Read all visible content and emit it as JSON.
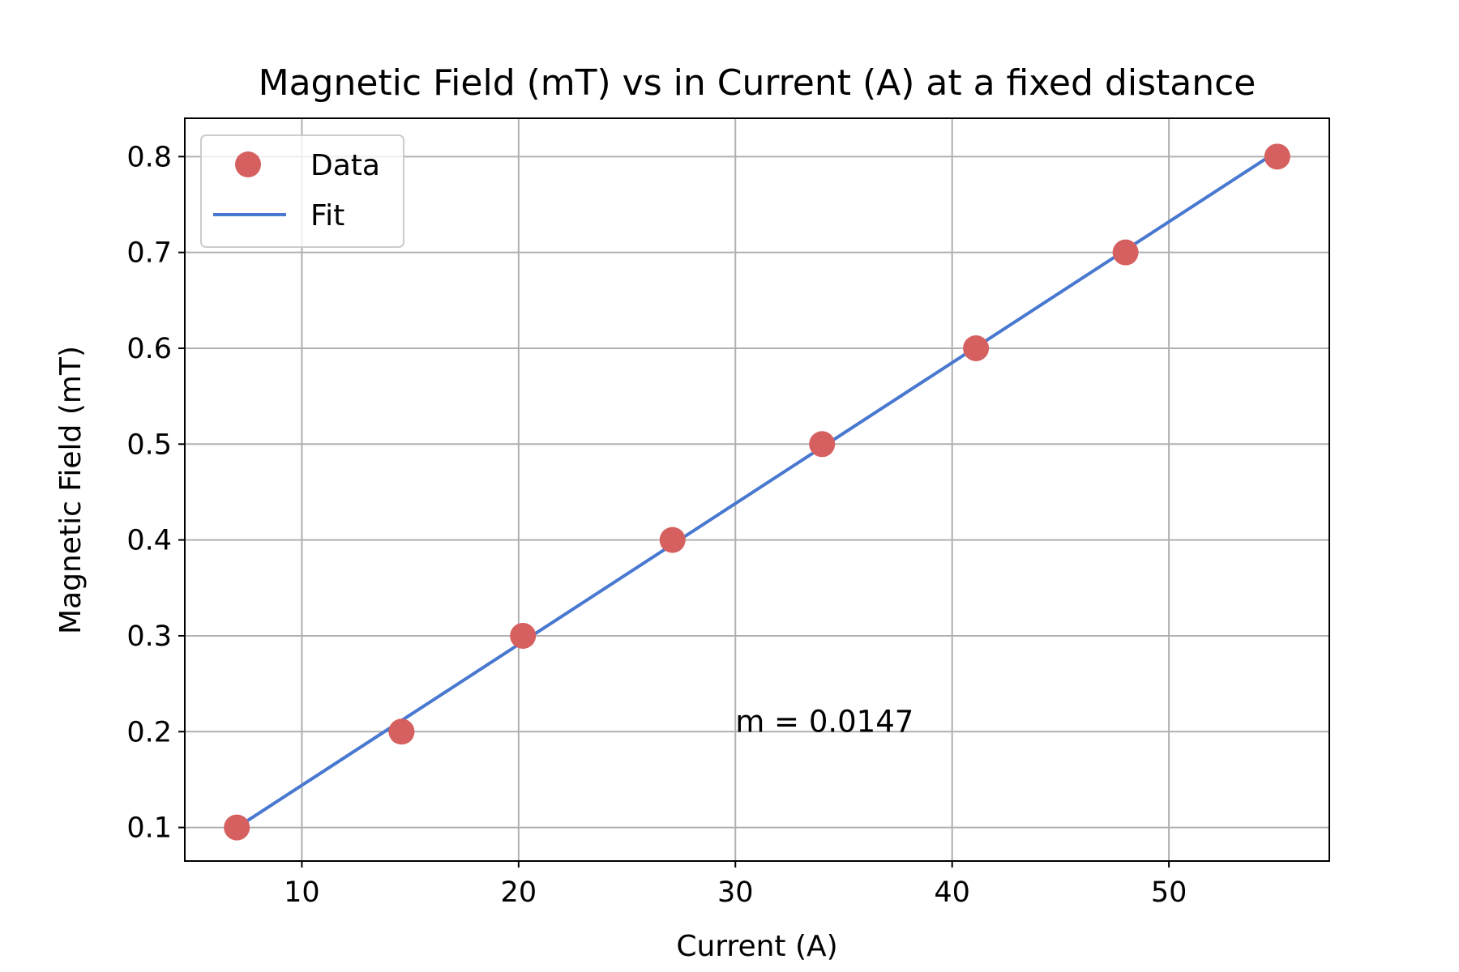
{
  "chart_data": {
    "type": "scatter",
    "title": "Magnetic Field (mT) vs in Current (A) at a fixed distance",
    "xlabel": "Current (A)",
    "ylabel": "Magnetic Field (mT)",
    "xlim": [
      4.6,
      57.4
    ],
    "ylim": [
      0.065,
      0.84
    ],
    "x_ticks": [
      10,
      20,
      30,
      40,
      50
    ],
    "y_ticks": [
      0.1,
      0.2,
      0.3,
      0.4,
      0.5,
      0.6,
      0.7,
      0.8
    ],
    "x_tick_labels": [
      "10",
      "20",
      "30",
      "40",
      "50"
    ],
    "y_tick_labels": [
      "0.1",
      "0.2",
      "0.3",
      "0.4",
      "0.5",
      "0.6",
      "0.7",
      "0.8"
    ],
    "grid": true,
    "legend_position": "upper-left",
    "series": [
      {
        "name": "Data",
        "kind": "scatter",
        "color": "#d65f5f",
        "x": [
          7.0,
          14.6,
          20.2,
          27.1,
          34.0,
          41.1,
          48.0,
          55.0
        ],
        "y": [
          0.1,
          0.2,
          0.3,
          0.4,
          0.5,
          0.6,
          0.7,
          0.8
        ]
      },
      {
        "name": "Fit",
        "kind": "line",
        "color": "#4878cf",
        "x": [
          7.0,
          55.0
        ],
        "y": [
          0.0999,
          0.8055
        ]
      }
    ],
    "annotations": [
      {
        "text": "m = 0.0147",
        "x": 30.0,
        "y": 0.2
      }
    ]
  }
}
